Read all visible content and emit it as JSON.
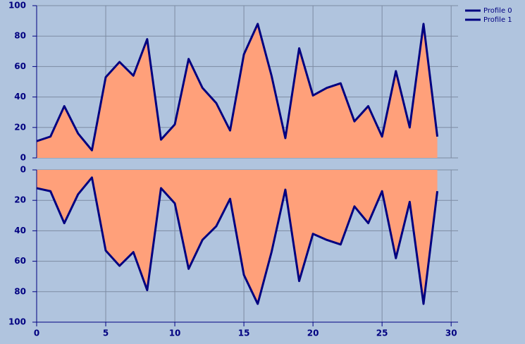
{
  "chart_data": [
    {
      "type": "area",
      "x": [
        0,
        1,
        2,
        3,
        4,
        5,
        6,
        7,
        8,
        9,
        10,
        11,
        12,
        13,
        14,
        15,
        16,
        17,
        18,
        19,
        20,
        21,
        22,
        23,
        24,
        25,
        26,
        27,
        28,
        29
      ],
      "series": [
        {
          "name": "Profile 0",
          "color": "#000080",
          "fill": "#ffa07a",
          "values": [
            11,
            14,
            34,
            16,
            5,
            53,
            63,
            54,
            78,
            12,
            22,
            65,
            46,
            36,
            18,
            68,
            88,
            54,
            13,
            72,
            41,
            46,
            49,
            24,
            34,
            14,
            57,
            20,
            88,
            14
          ]
        }
      ],
      "xlim": [
        0,
        30.5
      ],
      "xticks": [
        0,
        5,
        10,
        15,
        20,
        25,
        30
      ],
      "ylim": [
        0,
        100
      ],
      "yticks": [
        0,
        20,
        40,
        60,
        80,
        100
      ],
      "inverted": false,
      "grid": true,
      "legend": "upper right"
    },
    {
      "type": "area",
      "x": [
        0,
        1,
        2,
        3,
        4,
        5,
        6,
        7,
        8,
        9,
        10,
        11,
        12,
        13,
        14,
        15,
        16,
        17,
        18,
        19,
        20,
        21,
        22,
        23,
        24,
        25,
        26,
        27,
        28,
        29
      ],
      "series": [
        {
          "name": "Profile 1",
          "color": "#000080",
          "fill": "#ffa07a",
          "values": [
            12,
            14,
            35,
            16,
            5,
            53,
            63,
            54,
            79,
            12,
            22,
            65,
            46,
            37,
            19,
            69,
            88,
            54,
            13,
            73,
            42,
            46,
            49,
            24,
            35,
            14,
            58,
            21,
            88,
            14
          ]
        }
      ],
      "xlim": [
        0,
        30.5
      ],
      "xticks": [
        0,
        5,
        10,
        15,
        20,
        25,
        30
      ],
      "ylim": [
        0,
        100
      ],
      "yticks": [
        0,
        20,
        40,
        60,
        80,
        100
      ],
      "inverted": true,
      "grid": true,
      "legend": "upper right"
    }
  ]
}
